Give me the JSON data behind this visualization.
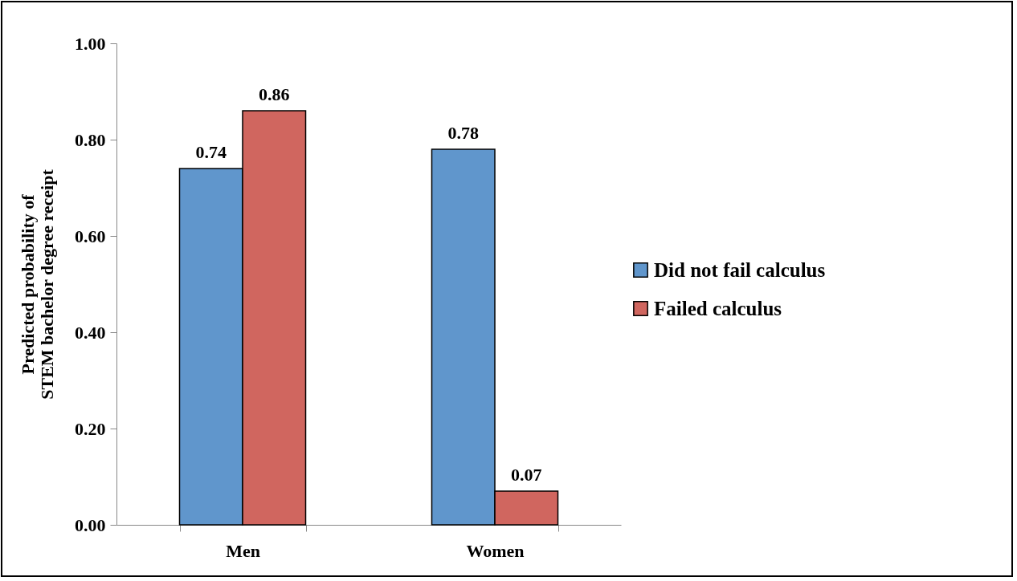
{
  "chart_data": {
    "type": "bar",
    "ylabel": "Predicted probability of STEM bachelor degree receipt",
    "categories": [
      "Men",
      "Women"
    ],
    "series": [
      {
        "name": "Did not fail calculus",
        "color": "#6096cc",
        "values": [
          0.74,
          0.78
        ]
      },
      {
        "name": "Failed calculus",
        "color": "#d0665f",
        "values": [
          0.86,
          0.07
        ]
      }
    ],
    "ylim": [
      0,
      1
    ],
    "yticks": [
      {
        "value": 0,
        "label": "0.00"
      },
      {
        "value": 0.2,
        "label": "0.20"
      },
      {
        "value": 0.4,
        "label": "0.40"
      },
      {
        "value": 0.6,
        "label": "0.60"
      },
      {
        "value": 0.8,
        "label": "0.80"
      },
      {
        "value": 1,
        "label": "1.00"
      }
    ],
    "data_labels": true,
    "grid": false,
    "legend": "right"
  }
}
